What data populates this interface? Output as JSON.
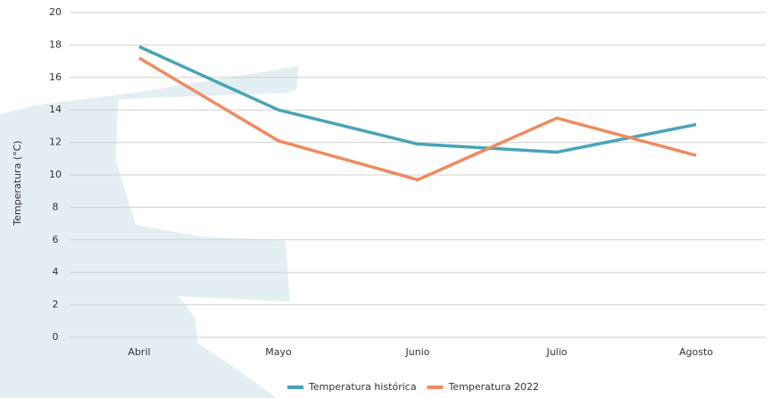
{
  "chart_data": {
    "type": "line",
    "y_label": "Temperatura (°C)",
    "categories": [
      "Abril",
      "Mayo",
      "Junio",
      "Julio",
      "Agosto"
    ],
    "series": [
      {
        "name": "Temperatura histórica",
        "color": "#4aa3b8",
        "values": [
          17.9,
          14.0,
          11.9,
          11.4,
          13.1
        ]
      },
      {
        "name": "Temperatura 2022",
        "color": "#ef8a5f",
        "values": [
          17.2,
          12.1,
          9.7,
          13.5,
          11.2
        ]
      }
    ],
    "ylim": [
      0,
      20
    ],
    "yticks": [
      0,
      2,
      4,
      6,
      8,
      10,
      12,
      14,
      16,
      18,
      20
    ],
    "grid": true
  }
}
